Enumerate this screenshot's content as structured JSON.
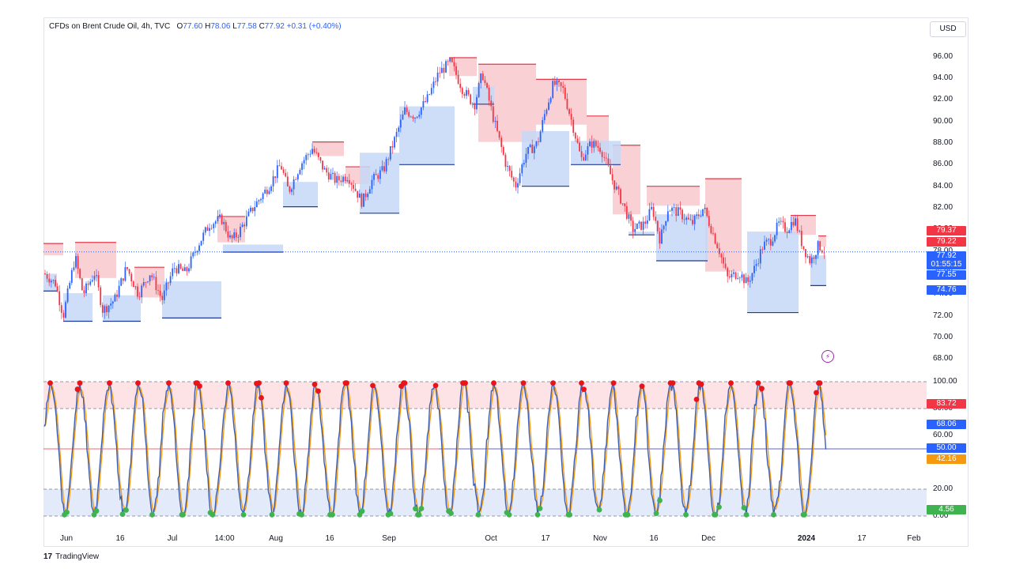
{
  "legend": {
    "symbol": "CFDs on Brent Crude Oil, 4h, TVC",
    "open_label": "O",
    "open": "77.60",
    "high_label": "H",
    "high": "78.06",
    "low_label": "L",
    "low": "77.58",
    "close_label": "C",
    "close": "77.92",
    "change": "+0.31 (+0.40%)"
  },
  "currency": "USD",
  "footer": {
    "logo": "17",
    "brand": "TradingView"
  },
  "colors": {
    "up_candle": "#2962ff",
    "down_candle": "#f23645",
    "supply_zone": "#f8c9cd",
    "demand_zone": "#c5d8f7",
    "stoch_k": "#3b5fb4",
    "stoch_d": "#f59a10",
    "dot_top": "#e8141c",
    "dot_bottom": "#3fb34f"
  },
  "price_axis": {
    "ticks": [
      "96.00",
      "94.00",
      "92.00",
      "90.00",
      "88.00",
      "86.00",
      "84.00",
      "82.00",
      "80.00",
      "78.00",
      "76.00",
      "74.00",
      "72.00",
      "70.00",
      "68.00"
    ],
    "labels": [
      {
        "text": "79.37",
        "color": "#f23645"
      },
      {
        "text": "79.22",
        "color": "#f23645"
      },
      {
        "text": "77.92",
        "color": "#2962ff"
      },
      {
        "text": "01:55:15",
        "color": "#2962ff"
      },
      {
        "text": "77.55",
        "color": "#2962ff"
      },
      {
        "text": "74.76",
        "color": "#2962ff"
      }
    ]
  },
  "osc_axis": {
    "ticks": [
      "100.00",
      "80.00",
      "60.00",
      "20.00",
      "0.00"
    ],
    "labels": [
      {
        "text": "83.72",
        "color": "#f23645"
      },
      {
        "text": "68.06",
        "color": "#2962ff"
      },
      {
        "text": "50.00",
        "color": "#2962ff"
      },
      {
        "text": "42.16",
        "color": "#f59a10"
      },
      {
        "text": "4.56",
        "color": "#3fb34f"
      }
    ]
  },
  "time_axis": [
    "Jun",
    "16",
    "Jul",
    "14:00",
    "Aug",
    "16",
    "Sep",
    "Oct",
    "17",
    "Nov",
    "16",
    "Dec",
    "2024",
    "17",
    "Feb"
  ],
  "chart_data": [
    {
      "type": "line",
      "title": "CFDs on Brent Crude Oil, 4h, TVC",
      "xlabel": "",
      "ylabel": "",
      "ylim": [
        67,
        97
      ],
      "x": [
        "Jun",
        "16",
        "Jul",
        "14:00",
        "Aug",
        "16",
        "Sep",
        "Oct",
        "17",
        "Nov",
        "16",
        "Dec",
        "2024"
      ],
      "series": [
        {
          "values": [
            75.5,
            74.0,
            74.5,
            79.5,
            84.5,
            84.0,
            85.5,
            94.0,
            88.0,
            87.5,
            82.5,
            77.0,
            77.92
          ]
        }
      ],
      "last_price": 77.92
    },
    {
      "type": "line",
      "ylim": [
        0,
        100
      ],
      "levels": [
        20,
        50,
        80,
        100
      ],
      "series": [
        {
          "values": [
            10,
            90,
            5,
            85,
            15,
            95,
            10,
            88,
            12,
            92,
            8,
            90,
            68.06
          ]
        },
        {
          "values": [
            20,
            80,
            15,
            80,
            20,
            90,
            15,
            85,
            20,
            85,
            15,
            85,
            42.16
          ]
        }
      ]
    }
  ]
}
